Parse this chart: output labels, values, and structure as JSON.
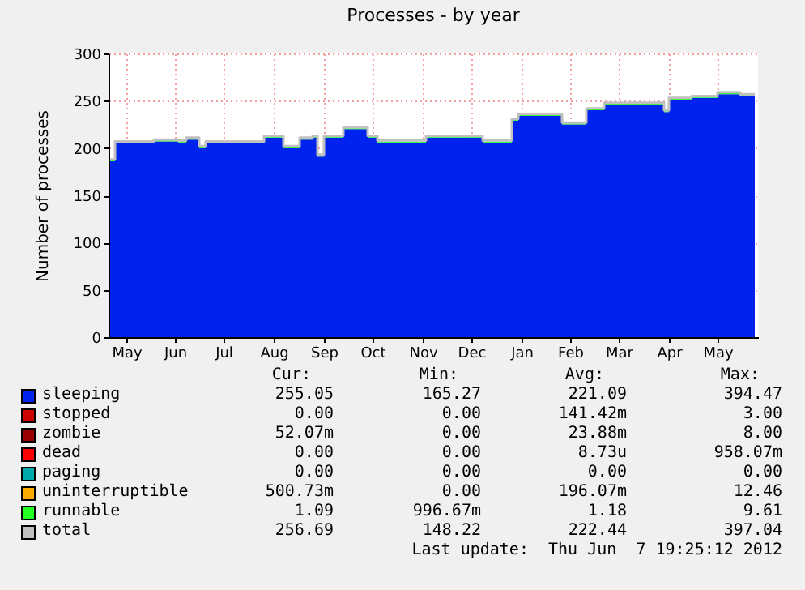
{
  "chart_data": {
    "type": "area",
    "title": "Processes - by year",
    "ylabel": "Number of processes",
    "stacked": true,
    "grid": true,
    "legend": "bottom",
    "x": [
      "2011-05-07",
      "2011-05-10",
      "2011-06-03",
      "2011-06-18",
      "2011-06-23",
      "2011-06-30",
      "2011-07-01",
      "2011-07-05",
      "2011-07-31",
      "2011-08-10",
      "2011-08-21",
      "2011-08-22",
      "2011-09-01",
      "2011-09-09",
      "2011-09-12",
      "2011-09-16",
      "2011-09-26",
      "2011-09-28",
      "2011-10-06",
      "2011-10-13",
      "2011-10-19",
      "2011-11-15",
      "2011-11-18",
      "2011-12-22",
      "2011-12-23",
      "2012-01-07",
      "2012-01-10",
      "2012-01-14",
      "2012-02-03",
      "2012-02-10",
      "2012-02-19",
      "2012-02-25",
      "2012-03-07",
      "2012-04-10",
      "2012-04-13",
      "2012-04-16",
      "2012-04-30",
      "2012-05-16",
      "2012-05-26",
      "2012-05-30",
      "2012-06-08"
    ],
    "xlim": [
      "2011-05-06",
      "2012-06-10"
    ],
    "xticks": [
      {
        "value": "2011-05-17",
        "label": "May"
      },
      {
        "value": "2011-06-16",
        "label": "Jun"
      },
      {
        "value": "2011-07-16",
        "label": "Jul"
      },
      {
        "value": "2011-08-16",
        "label": "Aug"
      },
      {
        "value": "2011-09-16",
        "label": "Sep"
      },
      {
        "value": "2011-10-16",
        "label": "Oct"
      },
      {
        "value": "2011-11-16",
        "label": "Nov"
      },
      {
        "value": "2011-12-16",
        "label": "Dec"
      },
      {
        "value": "2012-01-16",
        "label": "Jan"
      },
      {
        "value": "2012-02-15",
        "label": "Feb"
      },
      {
        "value": "2012-03-16",
        "label": "Mar"
      },
      {
        "value": "2012-04-16",
        "label": "Apr"
      },
      {
        "value": "2012-05-16",
        "label": "May"
      }
    ],
    "ylim": [
      0,
      300
    ],
    "yticks": [
      0,
      50,
      100,
      150,
      200,
      250,
      300
    ],
    "series": [
      {
        "name": "sleeping",
        "color": "#0022ee",
        "values": [
          186,
          205,
          207,
          206,
          209,
          209,
          200,
          205,
          205,
          211,
          211,
          200,
          209,
          211,
          191,
          211,
          211,
          220,
          220,
          211,
          206,
          206,
          211,
          211,
          206,
          206,
          229,
          234,
          234,
          225,
          225,
          240,
          246,
          246,
          238,
          251,
          253,
          257,
          257,
          255,
          255
        ]
      },
      {
        "name": "stopped",
        "color": "#cc0000",
        "values": [
          null,
          null,
          null,
          null,
          null,
          null,
          null,
          null,
          null,
          null,
          null,
          null,
          null,
          null,
          null,
          null,
          null,
          null,
          null,
          null,
          null,
          null,
          null,
          null,
          null,
          null,
          null,
          null,
          null,
          null,
          null,
          null,
          null,
          null,
          null,
          null,
          null,
          null,
          null,
          null,
          null
        ]
      },
      {
        "name": "zombie",
        "color": "#990000",
        "values": [
          null,
          null,
          null,
          null,
          null,
          null,
          null,
          null,
          null,
          null,
          null,
          null,
          null,
          null,
          null,
          null,
          null,
          null,
          null,
          null,
          null,
          null,
          null,
          null,
          null,
          null,
          null,
          null,
          null,
          null,
          null,
          null,
          null,
          null,
          null,
          null,
          null,
          null,
          null,
          null,
          null
        ]
      },
      {
        "name": "dead",
        "color": "#ff0000",
        "values": [
          null,
          null,
          null,
          null,
          null,
          null,
          null,
          null,
          null,
          null,
          null,
          null,
          null,
          null,
          null,
          null,
          null,
          null,
          null,
          null,
          null,
          null,
          null,
          null,
          null,
          null,
          null,
          null,
          null,
          null,
          null,
          null,
          null,
          null,
          null,
          null,
          null,
          null,
          null,
          null,
          null
        ]
      },
      {
        "name": "paging",
        "color": "#00aaaa",
        "values": [
          null,
          null,
          null,
          null,
          null,
          null,
          null,
          null,
          null,
          null,
          null,
          null,
          null,
          null,
          null,
          null,
          null,
          null,
          null,
          null,
          null,
          null,
          null,
          null,
          null,
          null,
          null,
          null,
          null,
          null,
          null,
          null,
          null,
          null,
          null,
          null,
          null,
          null,
          null,
          null,
          null
        ]
      },
      {
        "name": "uninterruptible",
        "color": "#ffaa00",
        "values": [
          null,
          null,
          null,
          null,
          null,
          null,
          null,
          null,
          null,
          null,
          null,
          null,
          null,
          null,
          null,
          null,
          null,
          null,
          null,
          null,
          null,
          null,
          null,
          null,
          null,
          null,
          null,
          null,
          null,
          null,
          null,
          null,
          null,
          null,
          null,
          null,
          null,
          null,
          null,
          null,
          null
        ]
      },
      {
        "name": "runnable",
        "color": "#22ff22",
        "values": [
          1,
          1,
          1,
          1,
          1,
          1,
          1,
          1,
          1,
          1,
          1,
          1,
          1,
          1,
          1,
          1,
          1,
          1,
          1,
          1,
          1,
          1,
          1,
          1,
          1,
          1,
          1,
          1,
          1,
          1,
          1,
          1,
          1,
          1,
          1,
          1,
          1,
          1,
          1,
          1,
          1
        ]
      },
      {
        "name": "total",
        "type": "step",
        "color": "#c0c0c0",
        "values": [
          188,
          207,
          209,
          208,
          211,
          211,
          202,
          207,
          207,
          213,
          213,
          202,
          211,
          213,
          193,
          213,
          213,
          222,
          222,
          213,
          208,
          208,
          213,
          213,
          208,
          208,
          231,
          236,
          236,
          227,
          227,
          242,
          248,
          248,
          240,
          253,
          255,
          259,
          259,
          257,
          257
        ]
      }
    ],
    "annotations": [
      "Cur:",
      "Min:",
      "Avg:",
      "Max:",
      "255.05",
      "165.27",
      "221.09",
      "394.47",
      "0.00",
      "0.00",
      "141.42m",
      "3.00",
      "52.07m",
      "0.00",
      "23.88m",
      "8.00",
      "0.00",
      "0.00",
      "8.73u",
      "958.07m",
      "0.00",
      "0.00",
      "0.00",
      "0.00",
      "500.73m",
      "0.00",
      "196.07m",
      "12.46",
      "1.09",
      "996.67m",
      "1.18",
      "9.61",
      "256.69",
      "148.22",
      "222.44",
      "397.04",
      "Last update:  Thu Jun  7 19:25:12 2012"
    ]
  }
}
